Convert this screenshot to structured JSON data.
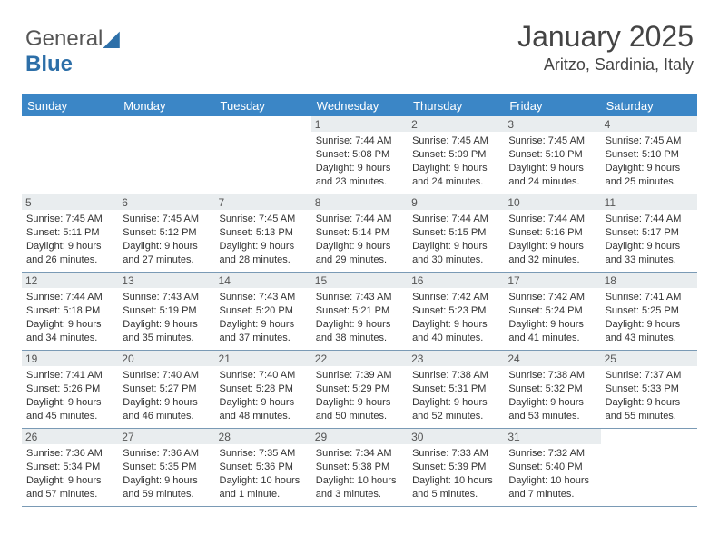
{
  "brand": {
    "name1": "General",
    "name2": "Blue"
  },
  "title": "January 2025",
  "location": "Aritzo, Sardinia, Italy",
  "colors": {
    "header_bg": "#3b86c6",
    "header_fg": "#ffffff",
    "daynum_bg": "#e9edef",
    "text": "#333333",
    "border": "#7a9ab5",
    "brand_accent": "#2d6fa8"
  },
  "day_names": [
    "Sunday",
    "Monday",
    "Tuesday",
    "Wednesday",
    "Thursday",
    "Friday",
    "Saturday"
  ],
  "weeks": [
    [
      null,
      null,
      null,
      {
        "n": "1",
        "sr": "7:44 AM",
        "ss": "5:08 PM",
        "dl": "9 hours and 23 minutes."
      },
      {
        "n": "2",
        "sr": "7:45 AM",
        "ss": "5:09 PM",
        "dl": "9 hours and 24 minutes."
      },
      {
        "n": "3",
        "sr": "7:45 AM",
        "ss": "5:10 PM",
        "dl": "9 hours and 24 minutes."
      },
      {
        "n": "4",
        "sr": "7:45 AM",
        "ss": "5:10 PM",
        "dl": "9 hours and 25 minutes."
      }
    ],
    [
      {
        "n": "5",
        "sr": "7:45 AM",
        "ss": "5:11 PM",
        "dl": "9 hours and 26 minutes."
      },
      {
        "n": "6",
        "sr": "7:45 AM",
        "ss": "5:12 PM",
        "dl": "9 hours and 27 minutes."
      },
      {
        "n": "7",
        "sr": "7:45 AM",
        "ss": "5:13 PM",
        "dl": "9 hours and 28 minutes."
      },
      {
        "n": "8",
        "sr": "7:44 AM",
        "ss": "5:14 PM",
        "dl": "9 hours and 29 minutes."
      },
      {
        "n": "9",
        "sr": "7:44 AM",
        "ss": "5:15 PM",
        "dl": "9 hours and 30 minutes."
      },
      {
        "n": "10",
        "sr": "7:44 AM",
        "ss": "5:16 PM",
        "dl": "9 hours and 32 minutes."
      },
      {
        "n": "11",
        "sr": "7:44 AM",
        "ss": "5:17 PM",
        "dl": "9 hours and 33 minutes."
      }
    ],
    [
      {
        "n": "12",
        "sr": "7:44 AM",
        "ss": "5:18 PM",
        "dl": "9 hours and 34 minutes."
      },
      {
        "n": "13",
        "sr": "7:43 AM",
        "ss": "5:19 PM",
        "dl": "9 hours and 35 minutes."
      },
      {
        "n": "14",
        "sr": "7:43 AM",
        "ss": "5:20 PM",
        "dl": "9 hours and 37 minutes."
      },
      {
        "n": "15",
        "sr": "7:43 AM",
        "ss": "5:21 PM",
        "dl": "9 hours and 38 minutes."
      },
      {
        "n": "16",
        "sr": "7:42 AM",
        "ss": "5:23 PM",
        "dl": "9 hours and 40 minutes."
      },
      {
        "n": "17",
        "sr": "7:42 AM",
        "ss": "5:24 PM",
        "dl": "9 hours and 41 minutes."
      },
      {
        "n": "18",
        "sr": "7:41 AM",
        "ss": "5:25 PM",
        "dl": "9 hours and 43 minutes."
      }
    ],
    [
      {
        "n": "19",
        "sr": "7:41 AM",
        "ss": "5:26 PM",
        "dl": "9 hours and 45 minutes."
      },
      {
        "n": "20",
        "sr": "7:40 AM",
        "ss": "5:27 PM",
        "dl": "9 hours and 46 minutes."
      },
      {
        "n": "21",
        "sr": "7:40 AM",
        "ss": "5:28 PM",
        "dl": "9 hours and 48 minutes."
      },
      {
        "n": "22",
        "sr": "7:39 AM",
        "ss": "5:29 PM",
        "dl": "9 hours and 50 minutes."
      },
      {
        "n": "23",
        "sr": "7:38 AM",
        "ss": "5:31 PM",
        "dl": "9 hours and 52 minutes."
      },
      {
        "n": "24",
        "sr": "7:38 AM",
        "ss": "5:32 PM",
        "dl": "9 hours and 53 minutes."
      },
      {
        "n": "25",
        "sr": "7:37 AM",
        "ss": "5:33 PM",
        "dl": "9 hours and 55 minutes."
      }
    ],
    [
      {
        "n": "26",
        "sr": "7:36 AM",
        "ss": "5:34 PM",
        "dl": "9 hours and 57 minutes."
      },
      {
        "n": "27",
        "sr": "7:36 AM",
        "ss": "5:35 PM",
        "dl": "9 hours and 59 minutes."
      },
      {
        "n": "28",
        "sr": "7:35 AM",
        "ss": "5:36 PM",
        "dl": "10 hours and 1 minute."
      },
      {
        "n": "29",
        "sr": "7:34 AM",
        "ss": "5:38 PM",
        "dl": "10 hours and 3 minutes."
      },
      {
        "n": "30",
        "sr": "7:33 AM",
        "ss": "5:39 PM",
        "dl": "10 hours and 5 minutes."
      },
      {
        "n": "31",
        "sr": "7:32 AM",
        "ss": "5:40 PM",
        "dl": "10 hours and 7 minutes."
      },
      null
    ]
  ],
  "labels": {
    "sunrise": "Sunrise: ",
    "sunset": "Sunset: ",
    "daylight": "Daylight: "
  }
}
